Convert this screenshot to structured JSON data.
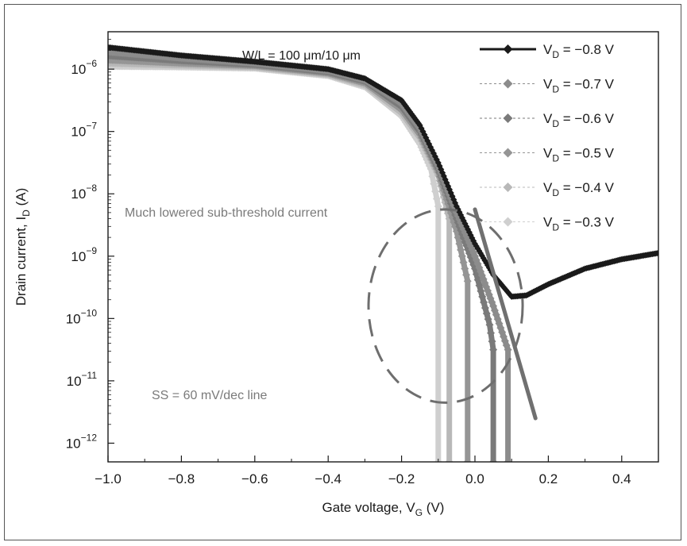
{
  "chart_data": {
    "type": "line",
    "xlabel": {
      "main": "Gate voltage, V",
      "sub": "G",
      "unit": " (V)"
    },
    "ylabel": {
      "main": "Drain current, I",
      "sub": "D",
      "unit": " (A)"
    },
    "xlim": [
      -1.0,
      0.5
    ],
    "ylim_log10": [
      -12.3,
      -5.4
    ],
    "y_scale": "log",
    "grid": false,
    "x_ticks": [
      -1.0,
      -0.8,
      -0.6,
      -0.4,
      -0.2,
      0.0,
      0.2,
      0.4
    ],
    "x_tick_labels": [
      "−1.0",
      "−0.8",
      "−0.6",
      "−0.4",
      "−0.2",
      "0.0",
      "0.2",
      "0.4"
    ],
    "y_ticks": [
      {
        "exp": -6,
        "base": "10",
        "power": "−6"
      },
      {
        "exp": -7,
        "base": "10",
        "power": "−7"
      },
      {
        "exp": -8,
        "base": "10",
        "power": "−8"
      },
      {
        "exp": -9,
        "base": "10",
        "power": "−9"
      },
      {
        "exp": -10,
        "base": "10",
        "power": "−10"
      },
      {
        "exp": -11,
        "base": "10",
        "power": "−11"
      },
      {
        "exp": -12,
        "base": "10",
        "power": "−12"
      }
    ],
    "annotations": {
      "wl": "W/L = 100 μm/10 μm",
      "subthreshold": "Much lowered sub-threshold current",
      "ss": "SS = 60 mV/dec line"
    },
    "legend_placement": "top-right",
    "series": [
      {
        "name": {
          "main": "V",
          "sub": "D",
          "rest": " = −0.8 V"
        },
        "color": "#1a1a1a",
        "style": "solid",
        "marker": "diamond",
        "points": [
          [
            -1.0,
            -5.65
          ],
          [
            -0.8,
            -5.78
          ],
          [
            -0.6,
            -5.88
          ],
          [
            -0.4,
            -6.0
          ],
          [
            -0.3,
            -6.15
          ],
          [
            -0.2,
            -6.5
          ],
          [
            -0.15,
            -6.9
          ],
          [
            -0.1,
            -7.5
          ],
          [
            -0.05,
            -8.2
          ],
          [
            0.0,
            -8.8
          ],
          [
            0.05,
            -9.3
          ],
          [
            0.1,
            -9.65
          ],
          [
            0.14,
            -9.63
          ],
          [
            0.2,
            -9.45
          ],
          [
            0.3,
            -9.2
          ],
          [
            0.4,
            -9.05
          ],
          [
            0.5,
            -8.95
          ]
        ]
      },
      {
        "name": {
          "main": "V",
          "sub": "D",
          "rest": " = −0.7 V"
        },
        "color": "#8c8c8c",
        "style": "dashed",
        "marker": "diamond",
        "points": [
          [
            -1.0,
            -5.72
          ],
          [
            -0.8,
            -5.82
          ],
          [
            -0.6,
            -5.9
          ],
          [
            -0.4,
            -6.02
          ],
          [
            -0.3,
            -6.17
          ],
          [
            -0.2,
            -6.55
          ],
          [
            -0.15,
            -6.95
          ],
          [
            -0.1,
            -7.55
          ],
          [
            -0.05,
            -8.3
          ],
          [
            0.0,
            -9.0
          ],
          [
            0.05,
            -9.8
          ],
          [
            0.09,
            -10.5
          ],
          [
            0.09,
            -12.3
          ]
        ]
      },
      {
        "name": {
          "main": "V",
          "sub": "D",
          "rest": " = −0.6 V"
        },
        "color": "#7a7a7a",
        "style": "dashed",
        "marker": "diamond",
        "points": [
          [
            -1.0,
            -5.78
          ],
          [
            -0.8,
            -5.86
          ],
          [
            -0.6,
            -5.92
          ],
          [
            -0.4,
            -6.04
          ],
          [
            -0.3,
            -6.19
          ],
          [
            -0.2,
            -6.6
          ],
          [
            -0.15,
            -7.0
          ],
          [
            -0.1,
            -7.6
          ],
          [
            -0.05,
            -8.4
          ],
          [
            0.0,
            -9.2
          ],
          [
            0.04,
            -10.1
          ],
          [
            0.05,
            -10.5
          ],
          [
            0.05,
            -12.3
          ]
        ]
      },
      {
        "name": {
          "main": "V",
          "sub": "D",
          "rest": " = −0.5 V"
        },
        "color": "#959595",
        "style": "dashed",
        "marker": "diamond",
        "points": [
          [
            -1.0,
            -5.85
          ],
          [
            -0.8,
            -5.9
          ],
          [
            -0.6,
            -5.94
          ],
          [
            -0.4,
            -6.06
          ],
          [
            -0.3,
            -6.22
          ],
          [
            -0.2,
            -6.65
          ],
          [
            -0.15,
            -7.05
          ],
          [
            -0.1,
            -7.65
          ],
          [
            -0.05,
            -8.6
          ],
          [
            -0.02,
            -9.4
          ],
          [
            -0.02,
            -12.3
          ]
        ]
      },
      {
        "name": {
          "main": "V",
          "sub": "D",
          "rest": " = −0.4 V"
        },
        "color": "#b8b8b8",
        "style": "dashed",
        "marker": "diamond",
        "points": [
          [
            -1.0,
            -5.9
          ],
          [
            -0.8,
            -5.93
          ],
          [
            -0.6,
            -5.96
          ],
          [
            -0.4,
            -6.08
          ],
          [
            -0.3,
            -6.25
          ],
          [
            -0.2,
            -6.7
          ],
          [
            -0.15,
            -7.1
          ],
          [
            -0.1,
            -7.7
          ],
          [
            -0.07,
            -8.4
          ],
          [
            -0.07,
            -12.3
          ]
        ]
      },
      {
        "name": {
          "main": "V",
          "sub": "D",
          "rest": " = −0.3 V"
        },
        "color": "#cfcfcf",
        "style": "dashed",
        "marker": "diamond",
        "points": [
          [
            -1.0,
            -5.95
          ],
          [
            -0.8,
            -5.96
          ],
          [
            -0.6,
            -5.98
          ],
          [
            -0.4,
            -6.1
          ],
          [
            -0.3,
            -6.28
          ],
          [
            -0.2,
            -6.75
          ],
          [
            -0.15,
            -7.2
          ],
          [
            -0.12,
            -7.6
          ],
          [
            -0.1,
            -8.2
          ],
          [
            -0.1,
            -12.3
          ]
        ]
      }
    ],
    "ss_line": {
      "points": [
        [
          0.0,
          -8.25
        ],
        [
          0.165,
          -11.6
        ]
      ],
      "color": "#707070"
    },
    "ellipse": {
      "center": [
        -0.08,
        -9.8
      ],
      "radius_x": 0.21,
      "radius_y": 1.55,
      "color": "#6e6e6e"
    }
  }
}
